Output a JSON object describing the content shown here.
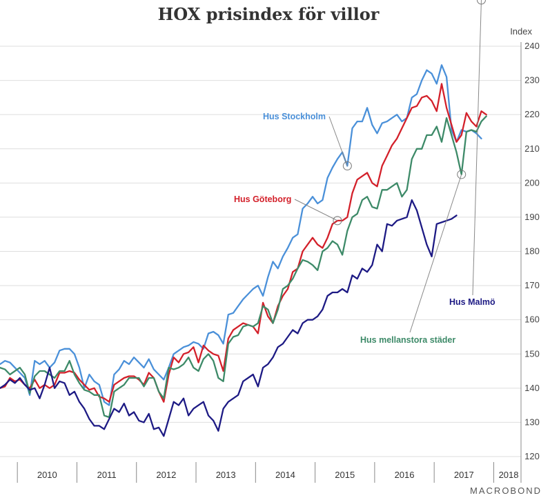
{
  "chart_data": {
    "type": "line",
    "title": "HOX prisindex för villor",
    "unit_label": "Index",
    "ylim": [
      120,
      240
    ],
    "yticks": [
      120,
      130,
      140,
      150,
      160,
      170,
      180,
      190,
      200,
      210,
      220,
      230,
      240
    ],
    "x_range": [
      "2009-09",
      "2018-06"
    ],
    "year_labels": [
      "2010",
      "2011",
      "2012",
      "2013",
      "2014",
      "2015",
      "2016",
      "2017",
      "2018"
    ],
    "grid": true,
    "series": [
      {
        "name": "Hus Stockholm",
        "color": "#4a90d9",
        "start": "2009-09",
        "values": [
          147,
          148,
          147.5,
          146,
          144.5,
          143,
          138,
          148,
          147,
          148,
          146,
          147.5,
          151,
          151.5,
          151.5,
          150,
          146,
          140,
          144,
          142,
          141,
          136,
          135,
          144,
          145.5,
          148,
          147,
          149,
          147.5,
          146,
          148.5,
          145.5,
          144,
          142.5,
          146,
          150,
          151,
          152,
          152.5,
          153.5,
          153,
          151.5,
          156,
          156.5,
          155.5,
          153,
          161.5,
          162,
          164,
          166,
          167.5,
          169,
          170,
          167,
          172.5,
          177,
          175,
          178.5,
          181,
          184,
          185,
          192.5,
          194,
          196,
          194,
          195,
          201.5,
          204.5,
          207,
          209,
          205,
          216,
          218,
          218,
          222,
          217,
          214.5,
          217.5,
          218,
          219,
          220,
          218,
          219,
          225,
          226,
          230,
          233,
          232,
          229,
          234.5,
          231,
          215.5,
          212,
          215.5,
          215,
          215.5,
          214.5,
          213
        ]
      },
      {
        "name": "Hus Göteborg",
        "color": "#d3202a",
        "start": "2009-09",
        "values": [
          140,
          140.5,
          143,
          142,
          142.5,
          141,
          140,
          142.5,
          140,
          141,
          140,
          141,
          144.5,
          144.5,
          145,
          144.5,
          142.5,
          141,
          139.5,
          140,
          137.5,
          137,
          136,
          141,
          142,
          143,
          143.5,
          143.5,
          142.5,
          141,
          144.5,
          143,
          139,
          136,
          144,
          149,
          147.5,
          150,
          150.5,
          152,
          147.5,
          152.5,
          151,
          150,
          149.5,
          145,
          154.5,
          157,
          158,
          159,
          158.5,
          158,
          156,
          165,
          161,
          159,
          164,
          167,
          169,
          174,
          175,
          180,
          182,
          184,
          182,
          181,
          184,
          188,
          189,
          189,
          190,
          197,
          201,
          202,
          203,
          200,
          199,
          205,
          208,
          211,
          213,
          216,
          219,
          222,
          222.5,
          225,
          225.5,
          224,
          221,
          229,
          222,
          217,
          212,
          214,
          220.5,
          218,
          216.5,
          221,
          220
        ]
      },
      {
        "name": "Hus mellanstora städer",
        "color": "#3d8a68",
        "start": "2009-09",
        "values": [
          146,
          145.5,
          144,
          145,
          146,
          144,
          138.5,
          143.5,
          145,
          145,
          144,
          143,
          145,
          145,
          148,
          144,
          141.5,
          139.5,
          139,
          138,
          138,
          132,
          131.5,
          139,
          140,
          141,
          143,
          143,
          143,
          140.5,
          143,
          143,
          139,
          137,
          146,
          145.5,
          146,
          147,
          149,
          146,
          145,
          148.5,
          150,
          148,
          143,
          142,
          153,
          155,
          155.5,
          158,
          158.5,
          158,
          159,
          164,
          163,
          159,
          163,
          169,
          170,
          172,
          175,
          177.5,
          177,
          176,
          174.5,
          180,
          181,
          183,
          182,
          179,
          186,
          190,
          191,
          195,
          196,
          193,
          192.5,
          198,
          198,
          199,
          200,
          196,
          198,
          207,
          210,
          210,
          214,
          214,
          216.5,
          212,
          219,
          214,
          209,
          202.5,
          215,
          215.5,
          215,
          218,
          219.5
        ]
      },
      {
        "name": "Hus Malmö",
        "color": "#1d1a84",
        "start": "2009-09",
        "values": [
          140,
          141,
          142.5,
          141.5,
          143,
          141,
          139.5,
          140,
          137,
          141,
          146,
          140,
          142,
          141.5,
          138,
          139,
          136,
          134,
          131,
          129,
          129,
          128,
          131,
          134,
          133,
          135.5,
          132,
          133,
          130.5,
          130,
          132.5,
          128,
          128.5,
          126,
          131,
          136,
          135,
          137,
          132,
          134,
          135,
          136,
          132,
          130.5,
          127.5,
          134,
          136,
          137,
          138,
          142,
          143,
          144,
          140.5,
          146,
          147,
          149,
          152,
          153,
          155,
          157,
          156,
          159,
          160,
          160,
          161,
          163,
          167,
          168,
          168,
          169,
          168,
          173,
          172,
          175,
          174,
          176,
          182,
          180,
          188,
          187.5,
          189,
          189.5,
          190,
          195,
          192,
          187,
          182,
          178.5,
          188,
          188.5,
          189,
          189.5,
          190.5
        ]
      }
    ],
    "annotations": [
      {
        "series": "Hus Stockholm",
        "label": "Hus Stockholm",
        "anchor": "2015-07"
      },
      {
        "series": "Hus Göteborg",
        "label": "Hus Göteborg",
        "anchor": "2015-05"
      },
      {
        "series": "Hus mellanstora städer",
        "label": "Hus mellanstora städer",
        "anchor": "2017-06"
      },
      {
        "series": "Hus Malmö",
        "label": "Hus Malmö",
        "anchor": "2017-10"
      }
    ]
  },
  "footer": {
    "brand": "MACROBOND"
  }
}
